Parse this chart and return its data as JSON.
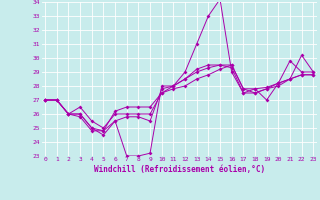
{
  "xlabel": "Windchill (Refroidissement éolien,°C)",
  "background_color": "#c8ecec",
  "grid_color": "#ffffff",
  "line_color": "#aa00aa",
  "xmin": 0,
  "xmax": 23,
  "ymin": 23,
  "ymax": 34,
  "yticks": [
    23,
    24,
    25,
    26,
    27,
    28,
    29,
    30,
    31,
    32,
    33,
    34
  ],
  "xticks": [
    0,
    1,
    2,
    3,
    4,
    5,
    6,
    7,
    8,
    9,
    10,
    11,
    12,
    13,
    14,
    15,
    16,
    17,
    18,
    19,
    20,
    21,
    22,
    23
  ],
  "series": [
    [
      27.0,
      27.0,
      26.0,
      26.0,
      25.0,
      24.5,
      25.5,
      23.0,
      23.0,
      23.2,
      28.0,
      28.0,
      29.0,
      31.0,
      33.0,
      34.2,
      29.0,
      27.5,
      27.8,
      27.0,
      28.2,
      29.8,
      29.0,
      29.0
    ],
    [
      27.0,
      27.0,
      26.0,
      26.5,
      25.5,
      25.0,
      26.0,
      26.0,
      26.0,
      26.0,
      27.5,
      27.8,
      28.0,
      28.5,
      28.8,
      29.2,
      29.5,
      27.8,
      27.8,
      27.9,
      28.2,
      28.5,
      28.8,
      28.8
    ],
    [
      27.0,
      27.0,
      26.0,
      26.0,
      25.0,
      24.8,
      26.2,
      26.5,
      26.5,
      26.5,
      27.5,
      28.0,
      28.5,
      29.0,
      29.3,
      29.5,
      29.5,
      27.8,
      27.5,
      27.8,
      28.2,
      28.5,
      30.2,
      29.0
    ],
    [
      27.0,
      27.0,
      26.0,
      25.8,
      24.8,
      24.8,
      25.5,
      25.8,
      25.8,
      25.5,
      27.8,
      28.0,
      28.5,
      29.2,
      29.5,
      29.5,
      29.3,
      27.5,
      27.5,
      27.8,
      28.0,
      28.5,
      28.8,
      28.8
    ]
  ]
}
